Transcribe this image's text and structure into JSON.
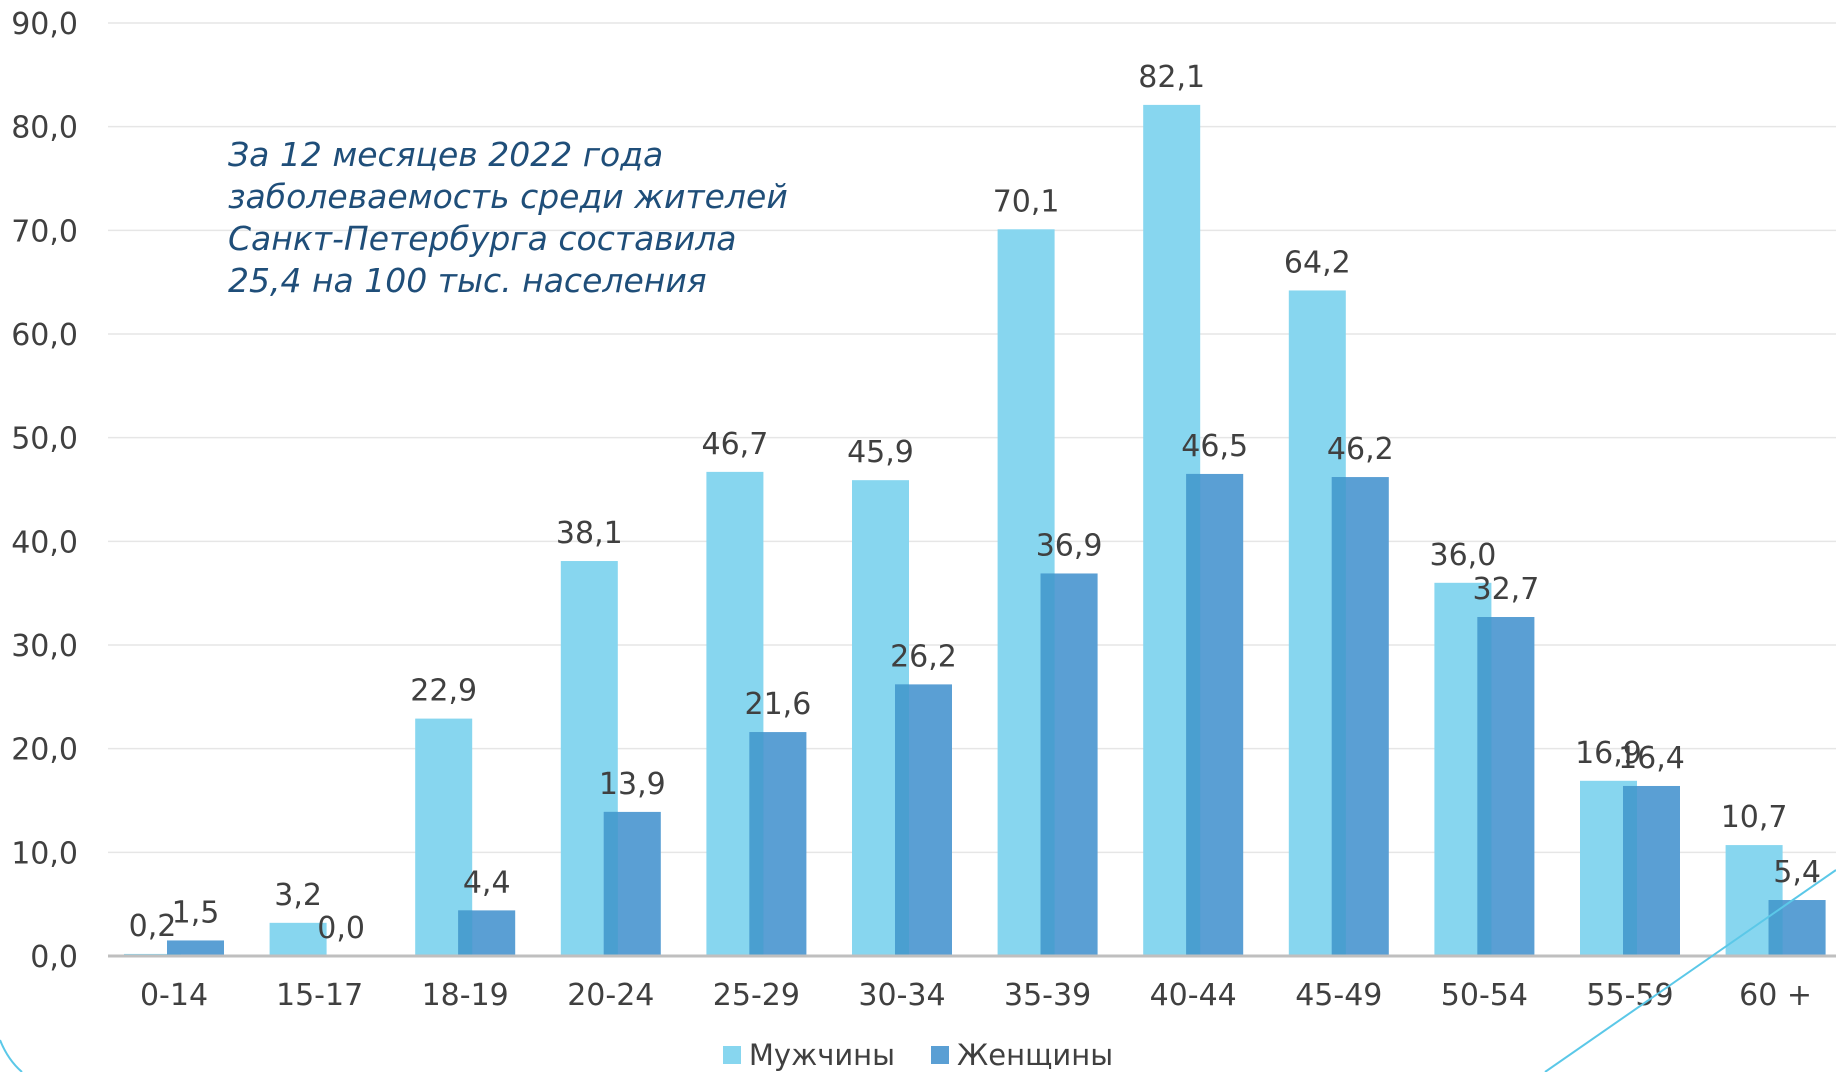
{
  "annotation": {
    "lines": [
      "За 12 месяцев 2022 года",
      "заболеваемость среди жителей",
      "Санкт-Петербурга составила",
      "25,4 на 100 тыс. населения"
    ]
  },
  "colors": {
    "men": "#87d6ef",
    "women": "#5a9fd4",
    "overlap": "#4a9fd0",
    "grid": "#e6e6e6",
    "axis": "#bfbfbf",
    "text": "#404040",
    "annotation": "#1f4e79",
    "decor_line": "#5bc8e8"
  },
  "chart_data": {
    "type": "bar",
    "categories": [
      "0-14",
      "15-17",
      "18-19",
      "20-24",
      "25-29",
      "30-34",
      "35-39",
      "40-44",
      "45-49",
      "50-54",
      "55-59",
      "60 +"
    ],
    "series": [
      {
        "name": "Мужчины",
        "values": [
          0.2,
          3.2,
          22.9,
          38.1,
          46.7,
          45.9,
          70.1,
          82.1,
          64.2,
          36.0,
          16.9,
          10.7
        ],
        "labels": [
          "0,2",
          "3,2",
          "22,9",
          "38,1",
          "46,7",
          "45,9",
          "70,1",
          "82,1",
          "64,2",
          "36,0",
          "16,9",
          "10,7"
        ]
      },
      {
        "name": "Женщины",
        "values": [
          1.5,
          0.0,
          4.4,
          13.9,
          21.6,
          26.2,
          36.9,
          46.5,
          46.2,
          32.7,
          16.4,
          5.4
        ],
        "labels": [
          "1,5",
          "0,0",
          "4,4",
          "13,9",
          "21,6",
          "26,2",
          "36,9",
          "46,5",
          "46,2",
          "32,7",
          "16,4",
          "5,4"
        ]
      }
    ],
    "ylim": [
      0,
      90
    ],
    "yticks": [
      0,
      10,
      20,
      30,
      40,
      50,
      60,
      70,
      80,
      90
    ],
    "ytick_labels": [
      "0,0",
      "10,0",
      "20,0",
      "30,0",
      "40,0",
      "50,0",
      "60,0",
      "70,0",
      "80,0",
      "90,0"
    ],
    "grid": true,
    "legend_position": "bottom-center",
    "title": "",
    "xlabel": "",
    "ylabel": ""
  }
}
